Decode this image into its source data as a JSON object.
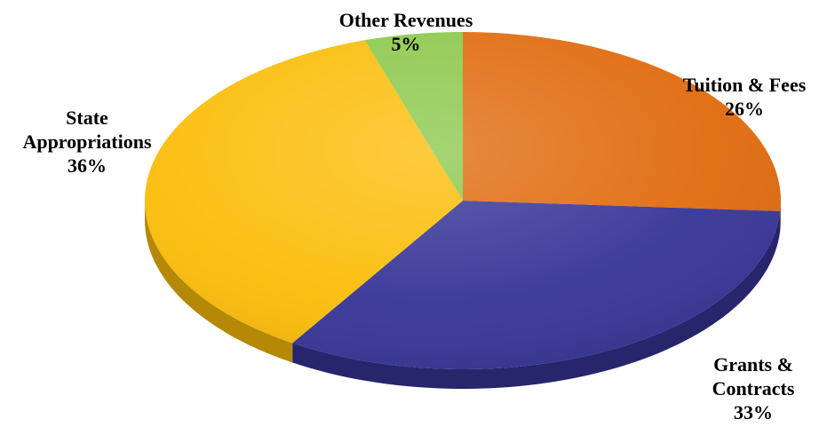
{
  "chart_data": {
    "type": "pie",
    "title": "",
    "slices": [
      {
        "name": "Tuition & Fees",
        "label_lines": [
          "Tuition & Fees"
        ],
        "value": 26,
        "value_label": "26%",
        "color": "#E06A0C"
      },
      {
        "name": "Grants & Contracts",
        "label_lines": [
          "Grants &",
          "Contracts"
        ],
        "value": 33,
        "value_label": "33%",
        "color": "#363496"
      },
      {
        "name": "State Appropriations",
        "label_lines": [
          "State",
          "Appropriations"
        ],
        "value": 36,
        "value_label": "36%",
        "color": "#FBBD08"
      },
      {
        "name": "Other Revenues",
        "label_lines": [
          "Other Revenues"
        ],
        "value": 5,
        "value_label": "5%",
        "color": "#8CC84B"
      }
    ],
    "style": "3d-tilted",
    "legend": "none"
  }
}
